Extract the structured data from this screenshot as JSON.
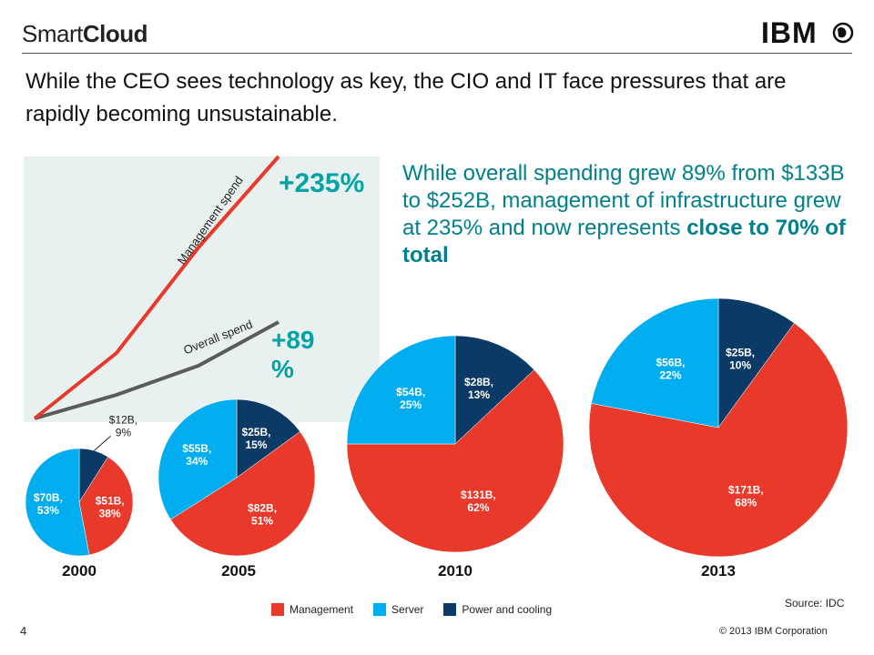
{
  "header": {
    "brand_regular": "Smart",
    "brand_bold": "Cloud",
    "logo_text": "IBM"
  },
  "headline": "While the CEO sees technology as key, the CIO and IT face pressures that are rapidly becoming unsustainable.",
  "callout": {
    "text": "While overall spending grew 89% from $133B to $252B, management of infrastructure grew at 235% and now represents ",
    "emphasis": "close to 70% of total"
  },
  "colors": {
    "management": "#e8392a",
    "server": "#00aef0",
    "power": "#0b3a66",
    "overall_line": "#5b5b5b",
    "accent": "#00a3a6"
  },
  "chart_data": [
    {
      "type": "line",
      "series": [
        {
          "name": "Management spend",
          "growth_label": "+235%"
        },
        {
          "name": "Overall spend",
          "growth_label": "+89\n%"
        }
      ]
    },
    {
      "type": "pie",
      "categories": [
        "Management",
        "Server",
        "Power and cooling"
      ],
      "pies": [
        {
          "label": "2000",
          "slices": [
            {
              "category": "Power and cooling",
              "value": 9,
              "label": "$12B,\n9%"
            },
            {
              "category": "Management",
              "value": 38,
              "label": "$51B,\n38%"
            },
            {
              "category": "Server",
              "value": 53,
              "label": "$70B,\n53%"
            }
          ]
        },
        {
          "label": "2005",
          "slices": [
            {
              "category": "Power and cooling",
              "value": 15,
              "label": "$25B,\n15%"
            },
            {
              "category": "Management",
              "value": 51,
              "label": "$82B,\n51%"
            },
            {
              "category": "Server",
              "value": 34,
              "label": "$55B,\n34%"
            }
          ]
        },
        {
          "label": "2010",
          "slices": [
            {
              "category": "Power and cooling",
              "value": 13,
              "label": "$28B,\n13%"
            },
            {
              "category": "Management",
              "value": 62,
              "label": "$131B,\n62%"
            },
            {
              "category": "Server",
              "value": 25,
              "label": "$54B,\n25%"
            }
          ]
        },
        {
          "label": "2013",
          "slices": [
            {
              "category": "Power and cooling",
              "value": 10,
              "label": "$25B,\n10%"
            },
            {
              "category": "Management",
              "value": 68,
              "label": "$171B,\n68%"
            },
            {
              "category": "Server",
              "value": 22,
              "label": "$56B,\n22%"
            }
          ]
        }
      ]
    }
  ],
  "legend": [
    {
      "label": "Management",
      "category": "Management"
    },
    {
      "label": "Server",
      "category": "Server"
    },
    {
      "label": "Power and cooling",
      "category": "Power and cooling"
    }
  ],
  "source": "Source: IDC",
  "footer": {
    "page_number": "4",
    "copyright": "© 2013 IBM Corporation"
  }
}
